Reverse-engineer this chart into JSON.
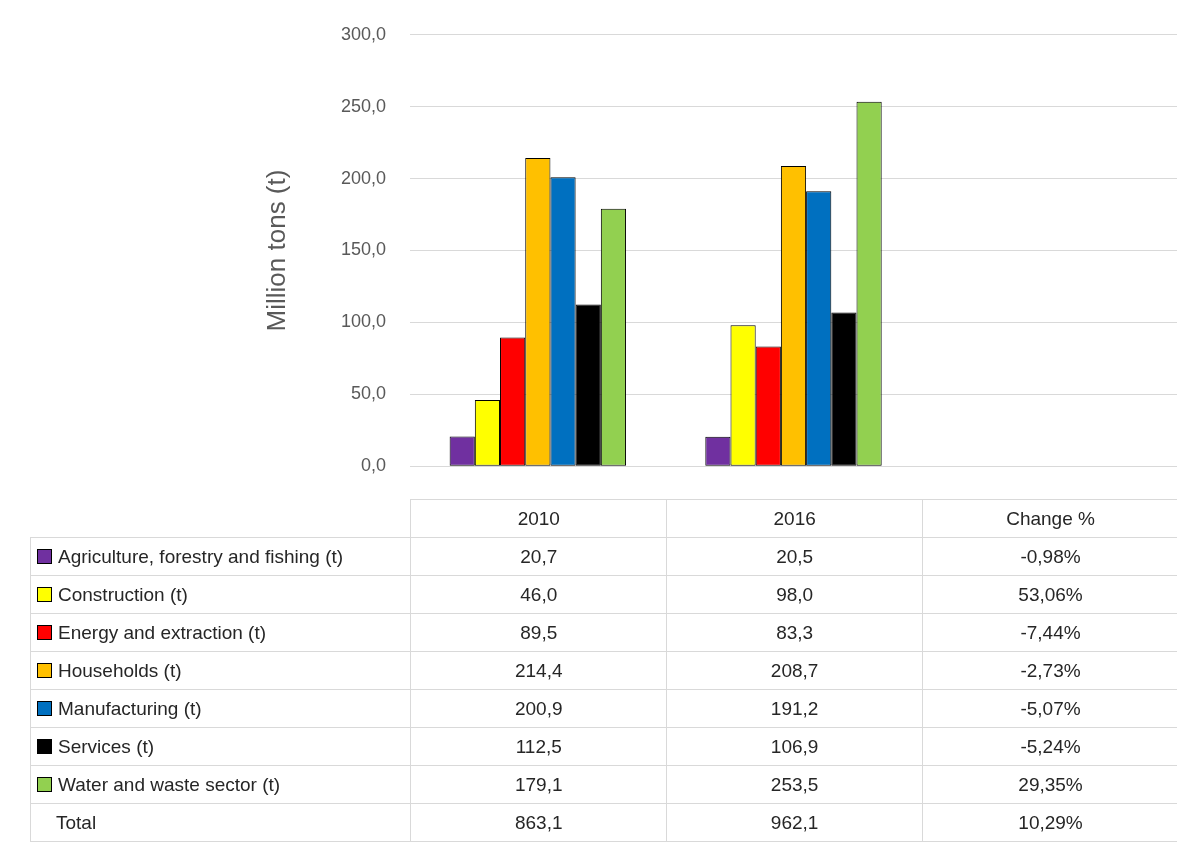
{
  "chart_data": {
    "type": "bar",
    "ylabel": "Million tons (t)",
    "categories": [
      "2010",
      "2016",
      "Change %"
    ],
    "series": [
      {
        "name": "Agriculture, forestry and fishing (t)",
        "color": "#7030a0",
        "values": [
          20.7,
          20.5,
          null
        ],
        "value_labels": [
          "20,7",
          "20,5",
          "-0,98%"
        ]
      },
      {
        "name": "Construction (t)",
        "color": "#ffff00",
        "values": [
          46.0,
          98.0,
          null
        ],
        "value_labels": [
          "46,0",
          "98,0",
          "53,06%"
        ]
      },
      {
        "name": "Energy and extraction (t)",
        "color": "#ff0000",
        "values": [
          89.5,
          83.3,
          null
        ],
        "value_labels": [
          "89,5",
          "83,3",
          "-7,44%"
        ]
      },
      {
        "name": "Households (t)",
        "color": "#ffc000",
        "values": [
          214.4,
          208.7,
          null
        ],
        "value_labels": [
          "214,4",
          "208,7",
          "-2,73%"
        ]
      },
      {
        "name": "Manufacturing (t)",
        "color": "#0070c0",
        "values": [
          200.9,
          191.2,
          null
        ],
        "value_labels": [
          "200,9",
          "191,2",
          "-5,07%"
        ]
      },
      {
        "name": "Services (t)",
        "color": "#000000",
        "values": [
          112.5,
          106.9,
          null
        ],
        "value_labels": [
          "112,5",
          "106,9",
          "-5,24%"
        ]
      },
      {
        "name": "Water and waste sector (t)",
        "color": "#92d050",
        "values": [
          179.1,
          253.5,
          null
        ],
        "value_labels": [
          "179,1",
          "253,5",
          "29,35%"
        ]
      }
    ],
    "annotations": [
      "Total",
      "863,1",
      "962,1",
      "10,29%"
    ],
    "ylim": [
      0,
      300
    ],
    "yticks": [
      {
        "value": 0,
        "label": "0,0"
      },
      {
        "value": 50,
        "label": "50,0"
      },
      {
        "value": 100,
        "label": "100,0"
      },
      {
        "value": 150,
        "label": "150,0"
      },
      {
        "value": 200,
        "label": "200,0"
      },
      {
        "value": 250,
        "label": "250,0"
      },
      {
        "value": 300,
        "label": "300,0"
      }
    ],
    "grid": "y",
    "legend": "bottom left"
  }
}
